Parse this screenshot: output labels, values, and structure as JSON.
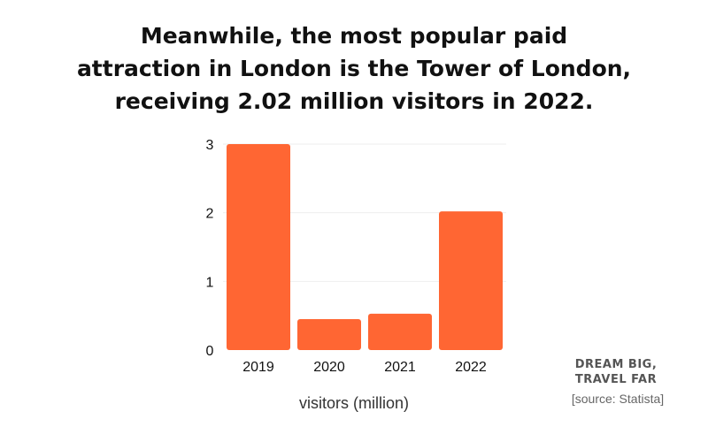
{
  "title": {
    "line1": "Meanwhile, the most popular paid",
    "line2": "attraction in London is the Tower of London,",
    "line3": "receiving 2.02 million visitors in 2022."
  },
  "chart_data": {
    "type": "bar",
    "categories": [
      "2019",
      "2020",
      "2021",
      "2022"
    ],
    "values": [
      3.0,
      0.45,
      0.53,
      2.02
    ],
    "xlabel": "visitors (million)",
    "ylabel": "",
    "ylim": [
      0,
      3
    ],
    "yticks": [
      "0",
      "1",
      "2",
      "3"
    ],
    "grid": true,
    "bar_color": "#FF6633"
  },
  "branding": {
    "line1": "DREAM BIG,",
    "line2": "TRAVEL FAR"
  },
  "source": "[source: Statista]"
}
